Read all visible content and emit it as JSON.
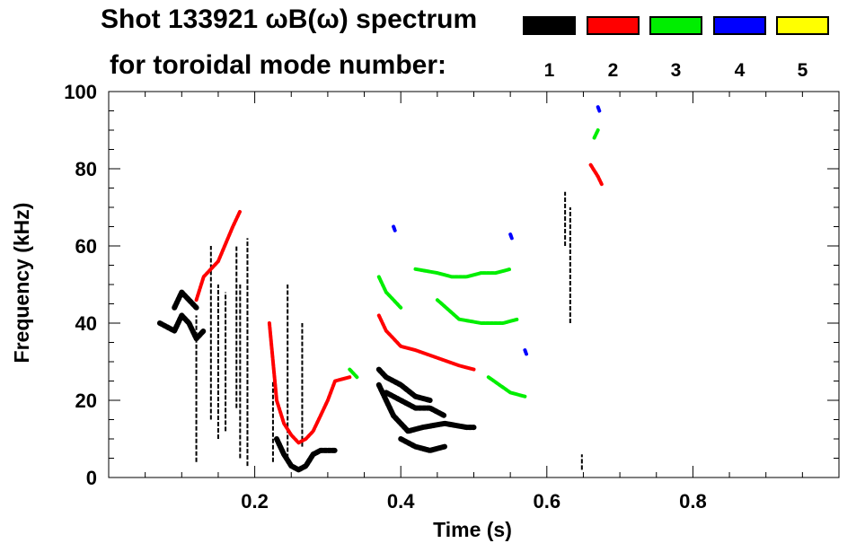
{
  "title": {
    "line1": "Shot 133921 ωB(ω) spectrum",
    "line2": "for toroidal mode number:"
  },
  "legend": [
    {
      "label": "1",
      "color": "#000000"
    },
    {
      "label": "2",
      "color": "#ff0000"
    },
    {
      "label": "3",
      "color": "#00ee00"
    },
    {
      "label": "4",
      "color": "#0000ff"
    },
    {
      "label": "5",
      "color": "#ffff00"
    }
  ],
  "chart_data": {
    "type": "scatter",
    "xlabel": "Time (s)",
    "ylabel": "Frequency (kHz)",
    "xlim": [
      0.0,
      1.0
    ],
    "ylim": [
      0,
      100
    ],
    "x_ticks": [
      {
        "value": 0.2,
        "label": "0.2"
      },
      {
        "value": 0.4,
        "label": "0.4"
      },
      {
        "value": 0.6,
        "label": "0.6"
      },
      {
        "value": 0.8,
        "label": "0.8"
      }
    ],
    "x_minor_step": 0.05,
    "y_ticks": [
      {
        "value": 0,
        "label": "0"
      },
      {
        "value": 20,
        "label": "20"
      },
      {
        "value": 40,
        "label": "40"
      },
      {
        "value": 60,
        "label": "60"
      },
      {
        "value": 80,
        "label": "80"
      },
      {
        "value": 100,
        "label": "100"
      }
    ],
    "y_minor_step": 5,
    "series": [
      {
        "name": "n=1",
        "color": "#000000",
        "segments": [
          [
            [
              0.07,
              40
            ],
            [
              0.09,
              38
            ],
            [
              0.1,
              42
            ],
            [
              0.11,
              40
            ],
            [
              0.12,
              36
            ],
            [
              0.13,
              38
            ]
          ],
          [
            [
              0.09,
              44
            ],
            [
              0.1,
              48
            ],
            [
              0.11,
              46
            ],
            [
              0.12,
              44
            ]
          ],
          [
            [
              0.23,
              10
            ],
            [
              0.24,
              6
            ],
            [
              0.25,
              3
            ],
            [
              0.26,
              2
            ],
            [
              0.27,
              3
            ],
            [
              0.28,
              6
            ],
            [
              0.29,
              7
            ],
            [
              0.31,
              7
            ]
          ],
          [
            [
              0.37,
              24
            ],
            [
              0.38,
              20
            ],
            [
              0.39,
              16
            ],
            [
              0.4,
              14
            ],
            [
              0.41,
              12
            ],
            [
              0.43,
              13
            ],
            [
              0.46,
              14
            ],
            [
              0.49,
              13
            ],
            [
              0.5,
              13
            ]
          ],
          [
            [
              0.38,
              22
            ],
            [
              0.4,
              20
            ],
            [
              0.42,
              18
            ],
            [
              0.44,
              18
            ],
            [
              0.46,
              16
            ]
          ],
          [
            [
              0.37,
              28
            ],
            [
              0.38,
              26
            ],
            [
              0.4,
              24
            ],
            [
              0.42,
              21
            ],
            [
              0.44,
              20
            ]
          ],
          [
            [
              0.4,
              10
            ],
            [
              0.42,
              8
            ],
            [
              0.44,
              7
            ],
            [
              0.46,
              8
            ]
          ]
        ],
        "lines": [
          {
            "x": 0.12,
            "y0": 4,
            "y1": 42
          },
          {
            "x": 0.14,
            "y0": 15,
            "y1": 60
          },
          {
            "x": 0.15,
            "y0": 10,
            "y1": 50
          },
          {
            "x": 0.16,
            "y0": 12,
            "y1": 48
          },
          {
            "x": 0.175,
            "y0": 18,
            "y1": 60
          },
          {
            "x": 0.18,
            "y0": 5,
            "y1": 50
          },
          {
            "x": 0.19,
            "y0": 3,
            "y1": 62
          },
          {
            "x": 0.225,
            "y0": 4,
            "y1": 25
          },
          {
            "x": 0.245,
            "y0": 5,
            "y1": 50
          },
          {
            "x": 0.265,
            "y0": 8,
            "y1": 40
          },
          {
            "x": 0.625,
            "y0": 60,
            "y1": 74
          },
          {
            "x": 0.632,
            "y0": 40,
            "y1": 70
          },
          {
            "x": 0.648,
            "y0": 2,
            "y1": 6
          }
        ]
      },
      {
        "name": "n=2",
        "color": "#ff0000",
        "segments": [
          [
            [
              0.12,
              46
            ],
            [
              0.13,
              52
            ],
            [
              0.14,
              54
            ],
            [
              0.15,
              56
            ],
            [
              0.17,
              65
            ],
            [
              0.18,
              69
            ]
          ],
          [
            [
              0.22,
              40
            ],
            [
              0.23,
              20
            ],
            [
              0.24,
              14
            ],
            [
              0.25,
              11
            ],
            [
              0.26,
              9
            ],
            [
              0.27,
              10
            ],
            [
              0.28,
              12
            ],
            [
              0.29,
              16
            ],
            [
              0.3,
              20
            ],
            [
              0.31,
              25
            ],
            [
              0.33,
              26
            ]
          ],
          [
            [
              0.37,
              42
            ],
            [
              0.38,
              38
            ],
            [
              0.39,
              36
            ],
            [
              0.4,
              34
            ],
            [
              0.42,
              33
            ],
            [
              0.45,
              31
            ],
            [
              0.48,
              29
            ],
            [
              0.5,
              28
            ]
          ],
          [
            [
              0.66,
              81
            ],
            [
              0.67,
              78
            ],
            [
              0.675,
              76
            ]
          ]
        ],
        "lines": []
      },
      {
        "name": "n=3",
        "color": "#00ee00",
        "segments": [
          [
            [
              0.42,
              54
            ],
            [
              0.45,
              53
            ],
            [
              0.47,
              52
            ],
            [
              0.49,
              52
            ],
            [
              0.51,
              53
            ],
            [
              0.53,
              53
            ],
            [
              0.55,
              54
            ]
          ],
          [
            [
              0.37,
              52
            ],
            [
              0.38,
              48
            ],
            [
              0.39,
              46
            ],
            [
              0.4,
              44
            ]
          ],
          [
            [
              0.45,
              46
            ],
            [
              0.48,
              41
            ],
            [
              0.51,
              40
            ],
            [
              0.54,
              40
            ],
            [
              0.56,
              41
            ]
          ],
          [
            [
              0.52,
              26
            ],
            [
              0.55,
              22
            ],
            [
              0.57,
              21
            ]
          ],
          [
            [
              0.33,
              28
            ],
            [
              0.34,
              26
            ]
          ],
          [
            [
              0.665,
              88
            ],
            [
              0.67,
              90
            ]
          ]
        ],
        "lines": []
      },
      {
        "name": "n=4",
        "color": "#0000ff",
        "segments": [
          [
            [
              0.39,
              65
            ],
            [
              0.392,
              64
            ]
          ],
          [
            [
              0.55,
              63
            ],
            [
              0.552,
              62
            ]
          ],
          [
            [
              0.57,
              33
            ],
            [
              0.572,
              32
            ]
          ],
          [
            [
              0.67,
              96
            ],
            [
              0.672,
              95
            ]
          ]
        ],
        "lines": []
      },
      {
        "name": "n=5",
        "color": "#ffff00",
        "segments": [],
        "lines": []
      }
    ]
  }
}
